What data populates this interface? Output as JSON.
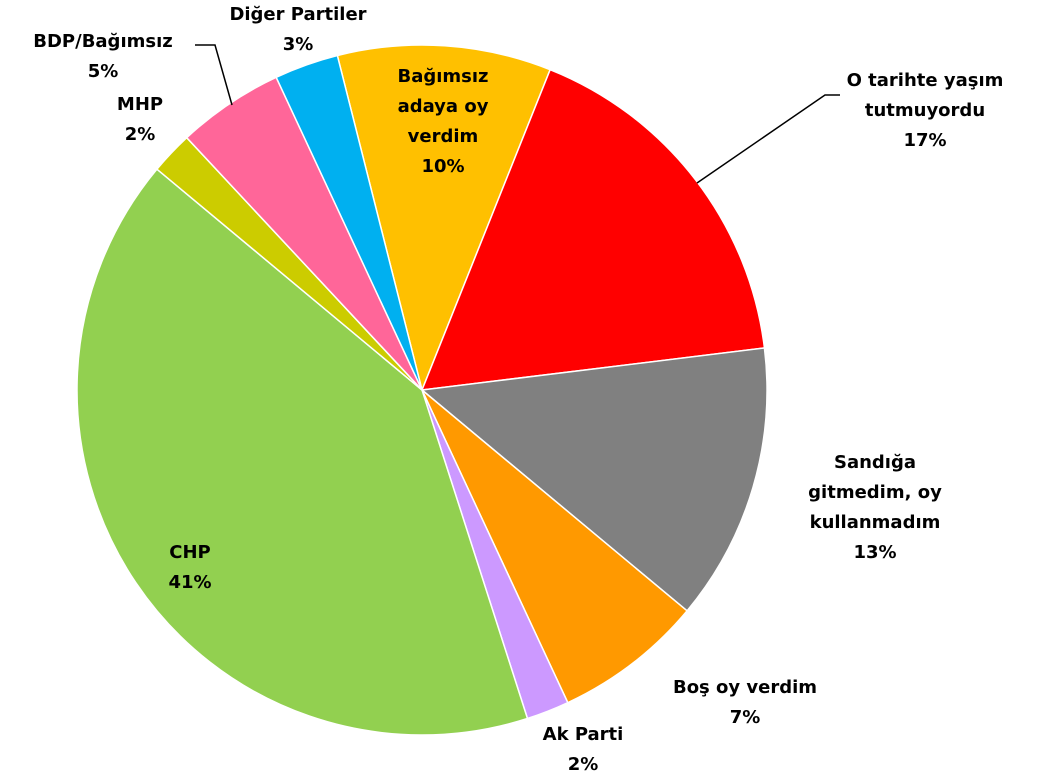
{
  "chart_data": {
    "type": "pie",
    "categories": [
      "Bağımsız adaya oy verdim",
      "O tarihte yaşım tutmuyordu",
      "Sandığa gitmedim, oy kullanmadım",
      "Boş oy verdim",
      "Ak Parti",
      "CHP",
      "MHP",
      "BDP/Bağımsız",
      "Diğer Partiler"
    ],
    "values": [
      10,
      17,
      13,
      7,
      2,
      41,
      2,
      5,
      3
    ],
    "value_labels": [
      "10%",
      "17%",
      "13%",
      "7%",
      "2%",
      "41%",
      "2%",
      "5%",
      "3%"
    ],
    "colors": [
      "#ffc000",
      "#ff0000",
      "#808080",
      "#ff9900",
      "#cc99ff",
      "#92d050",
      "#cccc00",
      "#ff6699",
      "#00b0f0"
    ]
  }
}
